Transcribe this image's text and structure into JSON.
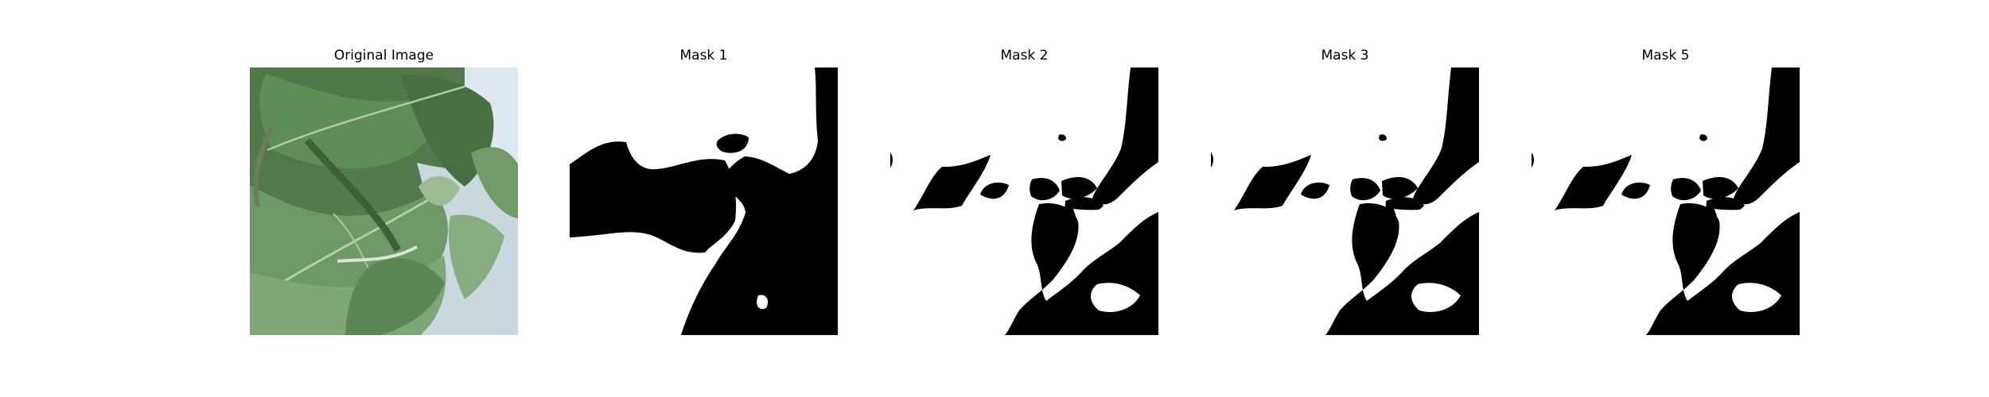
{
  "panels": [
    {
      "title": "Original Image"
    },
    {
      "title": "Mask 1"
    },
    {
      "title": "Mask 2"
    },
    {
      "title": "Mask 3"
    },
    {
      "title": "Mask 5"
    }
  ],
  "colors": {
    "background": "#ffffff",
    "mask_foreground": "#000000",
    "mask_background": "#ffffff",
    "leaf_dark": "#3f6b3c",
    "leaf_mid": "#5f8a58",
    "leaf_light": "#8fb089",
    "sky": "#dde6ec",
    "stem": "#6f7f5d"
  }
}
